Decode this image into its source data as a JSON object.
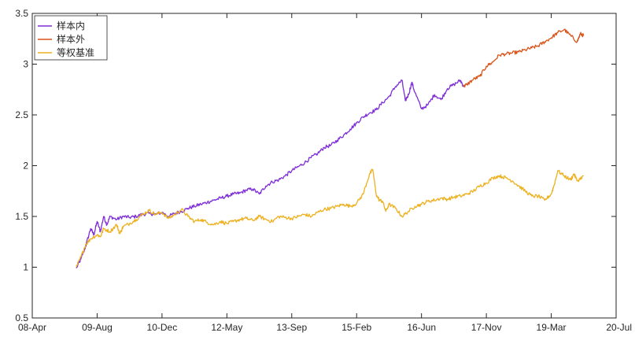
{
  "chart_data": {
    "type": "line",
    "title": "",
    "xlabel": "",
    "ylabel": "",
    "ylim": [
      0.5,
      3.5
    ],
    "y_ticks": [
      0.5,
      1,
      1.5,
      2,
      2.5,
      3,
      3.5
    ],
    "y_tick_labels": [
      "0.5",
      "1",
      "1.5",
      "2",
      "2.5",
      "3",
      "3.5"
    ],
    "x_range": [
      0,
      9
    ],
    "x_ticks": [
      0,
      1,
      2,
      3,
      4,
      5,
      6,
      7,
      8,
      9
    ],
    "x_tick_labels": [
      "08-Apr",
      "09-Aug",
      "10-Dec",
      "12-May",
      "13-Sep",
      "15-Feb",
      "16-Jun",
      "17-Nov",
      "19-Mar",
      "20-Jul"
    ],
    "grid": false,
    "legend_position": "top-left",
    "series": [
      {
        "name": "样本内",
        "color": "#7e2fd7",
        "x": [
          0.68,
          0.75,
          0.82,
          0.9,
          0.95,
          1.0,
          1.05,
          1.1,
          1.15,
          1.2,
          1.3,
          1.4,
          1.5,
          1.6,
          1.7,
          1.8,
          1.9,
          2.0,
          2.1,
          2.2,
          2.3,
          2.4,
          2.5,
          2.6,
          2.7,
          2.8,
          2.9,
          3.0,
          3.1,
          3.2,
          3.3,
          3.4,
          3.5,
          3.6,
          3.7,
          3.8,
          3.9,
          4.0,
          4.1,
          4.2,
          4.3,
          4.4,
          4.5,
          4.6,
          4.7,
          4.8,
          4.9,
          5.0,
          5.1,
          5.2,
          5.3,
          5.4,
          5.5,
          5.6,
          5.7,
          5.75,
          5.8,
          5.85,
          5.9,
          6.0,
          6.1,
          6.2,
          6.3,
          6.4,
          6.5,
          6.6,
          6.65
        ],
        "y": [
          0.99,
          1.08,
          1.2,
          1.38,
          1.32,
          1.45,
          1.35,
          1.5,
          1.42,
          1.5,
          1.47,
          1.5,
          1.49,
          1.5,
          1.52,
          1.53,
          1.52,
          1.54,
          1.5,
          1.53,
          1.55,
          1.58,
          1.6,
          1.62,
          1.64,
          1.66,
          1.68,
          1.7,
          1.72,
          1.73,
          1.76,
          1.77,
          1.72,
          1.8,
          1.84,
          1.86,
          1.9,
          1.95,
          1.99,
          2.03,
          2.08,
          2.12,
          2.18,
          2.2,
          2.25,
          2.3,
          2.36,
          2.42,
          2.48,
          2.52,
          2.55,
          2.62,
          2.68,
          2.78,
          2.84,
          2.64,
          2.7,
          2.82,
          2.72,
          2.56,
          2.6,
          2.7,
          2.65,
          2.76,
          2.8,
          2.84,
          2.78
        ]
      },
      {
        "name": "样本外",
        "color": "#d95319",
        "x": [
          6.65,
          6.7,
          6.8,
          6.9,
          7.0,
          7.1,
          7.2,
          7.3,
          7.4,
          7.5,
          7.6,
          7.7,
          7.8,
          7.9,
          8.0,
          8.1,
          8.2,
          8.3,
          8.4,
          8.45,
          8.5
        ],
        "y": [
          2.78,
          2.8,
          2.85,
          2.88,
          2.98,
          3.02,
          3.09,
          3.1,
          3.11,
          3.12,
          3.14,
          3.16,
          3.18,
          3.22,
          3.26,
          3.31,
          3.34,
          3.28,
          3.22,
          3.3,
          3.28
        ]
      },
      {
        "name": "等权基准",
        "color": "#edb120",
        "x": [
          0.68,
          0.75,
          0.82,
          0.9,
          1.0,
          1.05,
          1.1,
          1.2,
          1.3,
          1.35,
          1.4,
          1.5,
          1.6,
          1.7,
          1.8,
          1.9,
          2.0,
          2.1,
          2.2,
          2.3,
          2.4,
          2.5,
          2.6,
          2.7,
          2.8,
          2.9,
          3.0,
          3.1,
          3.2,
          3.3,
          3.4,
          3.5,
          3.6,
          3.7,
          3.8,
          3.9,
          4.0,
          4.1,
          4.2,
          4.3,
          4.4,
          4.5,
          4.6,
          4.7,
          4.8,
          4.9,
          5.0,
          5.1,
          5.2,
          5.25,
          5.3,
          5.35,
          5.4,
          5.45,
          5.5,
          5.6,
          5.7,
          5.8,
          5.9,
          6.0,
          6.1,
          6.2,
          6.3,
          6.4,
          6.5,
          6.6,
          6.7,
          6.8,
          6.9,
          7.0,
          7.1,
          7.2,
          7.3,
          7.4,
          7.5,
          7.6,
          7.7,
          7.8,
          7.9,
          8.0,
          8.05,
          8.1,
          8.2,
          8.3,
          8.35,
          8.4,
          8.5
        ],
        "y": [
          1.0,
          1.1,
          1.22,
          1.28,
          1.32,
          1.3,
          1.38,
          1.35,
          1.42,
          1.33,
          1.4,
          1.43,
          1.47,
          1.52,
          1.56,
          1.52,
          1.54,
          1.48,
          1.52,
          1.57,
          1.5,
          1.45,
          1.47,
          1.44,
          1.42,
          1.45,
          1.43,
          1.45,
          1.47,
          1.48,
          1.46,
          1.5,
          1.47,
          1.45,
          1.5,
          1.49,
          1.48,
          1.5,
          1.52,
          1.5,
          1.54,
          1.57,
          1.58,
          1.6,
          1.62,
          1.6,
          1.63,
          1.72,
          1.92,
          1.96,
          1.72,
          1.66,
          1.65,
          1.55,
          1.62,
          1.58,
          1.5,
          1.55,
          1.6,
          1.62,
          1.65,
          1.66,
          1.68,
          1.67,
          1.69,
          1.7,
          1.72,
          1.75,
          1.8,
          1.83,
          1.88,
          1.9,
          1.88,
          1.85,
          1.8,
          1.75,
          1.7,
          1.7,
          1.66,
          1.72,
          1.82,
          1.95,
          1.9,
          1.86,
          1.92,
          1.85,
          1.9
        ]
      }
    ]
  }
}
